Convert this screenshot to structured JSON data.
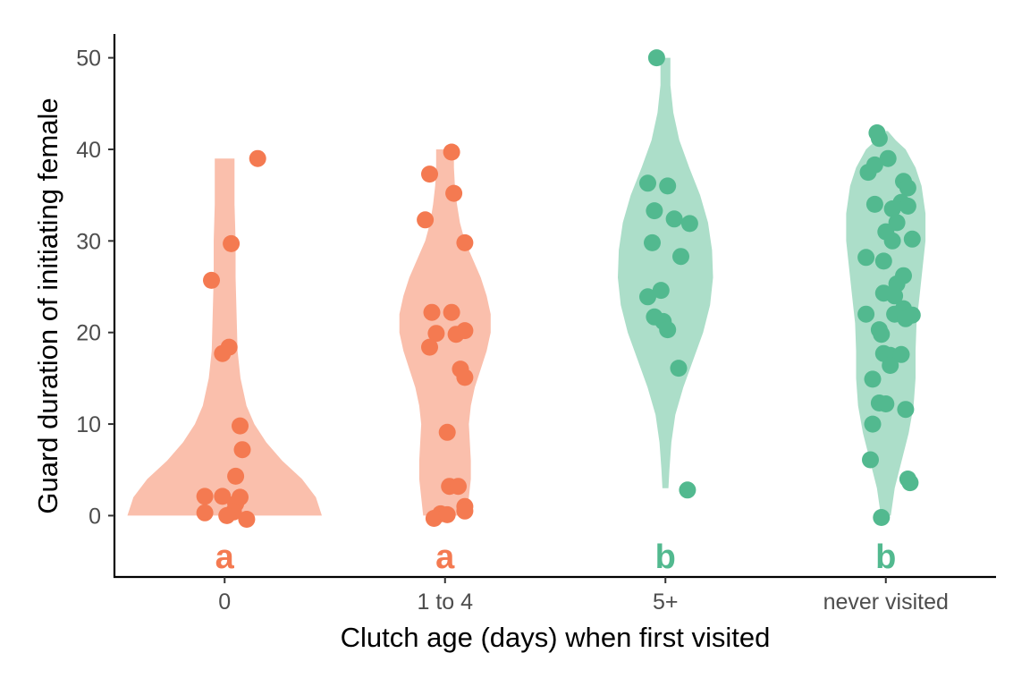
{
  "chart_data": {
    "type": "violin",
    "xlabel": "Clutch age (days) when first visited",
    "ylabel": "Guard duration of initiating female",
    "ylim": [
      -6.7,
      52.6
    ],
    "yticks": [
      0,
      10,
      20,
      30,
      40,
      50
    ],
    "grid": false,
    "legend": "none",
    "colors": {
      "orange": "#F47A51",
      "green": "#52B98F"
    },
    "groups": [
      {
        "category": "0",
        "color": "#F47A51",
        "letter": "a",
        "density": [
          [
            0,
            0.98
          ],
          [
            2,
            0.92
          ],
          [
            4,
            0.78
          ],
          [
            6,
            0.58
          ],
          [
            8,
            0.42
          ],
          [
            10,
            0.3
          ],
          [
            12,
            0.22
          ],
          [
            15,
            0.16
          ],
          [
            18,
            0.13
          ],
          [
            22,
            0.12
          ],
          [
            26,
            0.11
          ],
          [
            30,
            0.11
          ],
          [
            34,
            0.1
          ],
          [
            37,
            0.1
          ],
          [
            39,
            0.1
          ]
        ],
        "points": [
          [
            0.15,
            39
          ],
          [
            0.03,
            29.7
          ],
          [
            -0.06,
            25.7
          ],
          [
            0.02,
            18.4
          ],
          [
            -0.01,
            17.7
          ],
          [
            0.07,
            9.8
          ],
          [
            0.08,
            7.2
          ],
          [
            0.05,
            4.3
          ],
          [
            -0.09,
            2.1
          ],
          [
            -0.01,
            2.1
          ],
          [
            0.07,
            2.0
          ],
          [
            0.05,
            1.3
          ],
          [
            -0.09,
            0.3
          ],
          [
            0.04,
            0.4
          ],
          [
            0.01,
            0.0
          ],
          [
            0.1,
            -0.4
          ]
        ]
      },
      {
        "category": "1 to 4",
        "color": "#F47A51",
        "letter": "a",
        "density": [
          [
            0,
            0.22
          ],
          [
            2,
            0.24
          ],
          [
            4,
            0.26
          ],
          [
            6,
            0.26
          ],
          [
            8,
            0.25
          ],
          [
            10,
            0.24
          ],
          [
            12,
            0.26
          ],
          [
            14,
            0.3
          ],
          [
            16,
            0.36
          ],
          [
            18,
            0.42
          ],
          [
            20,
            0.46
          ],
          [
            22,
            0.46
          ],
          [
            24,
            0.42
          ],
          [
            26,
            0.36
          ],
          [
            28,
            0.28
          ],
          [
            30,
            0.2
          ],
          [
            32,
            0.15
          ],
          [
            34,
            0.12
          ],
          [
            36,
            0.1
          ],
          [
            38,
            0.09
          ],
          [
            40,
            0.09
          ]
        ],
        "points": [
          [
            0.03,
            39.7
          ],
          [
            -0.07,
            37.3
          ],
          [
            0.04,
            35.2
          ],
          [
            -0.09,
            32.3
          ],
          [
            0.09,
            29.8
          ],
          [
            -0.06,
            22.2
          ],
          [
            0.03,
            22.2
          ],
          [
            -0.04,
            19.9
          ],
          [
            0.05,
            19.8
          ],
          [
            0.09,
            20.2
          ],
          [
            -0.07,
            18.4
          ],
          [
            0.07,
            16.0
          ],
          [
            0.09,
            15.1
          ],
          [
            0.01,
            9.1
          ],
          [
            0.02,
            3.2
          ],
          [
            0.06,
            3.2
          ],
          [
            0.09,
            1.0
          ],
          [
            0.09,
            0.5
          ],
          [
            -0.02,
            0.2
          ],
          [
            -0.05,
            -0.3
          ],
          [
            0.01,
            0.1
          ]
        ]
      },
      {
        "category": "5+",
        "color": "#52B98F",
        "letter": "b",
        "density": [
          [
            3,
            0.03
          ],
          [
            5,
            0.04
          ],
          [
            8,
            0.06
          ],
          [
            11,
            0.1
          ],
          [
            14,
            0.18
          ],
          [
            17,
            0.28
          ],
          [
            20,
            0.38
          ],
          [
            23,
            0.45
          ],
          [
            26,
            0.48
          ],
          [
            29,
            0.47
          ],
          [
            32,
            0.43
          ],
          [
            35,
            0.35
          ],
          [
            38,
            0.24
          ],
          [
            41,
            0.14
          ],
          [
            44,
            0.08
          ],
          [
            47,
            0.05
          ],
          [
            50,
            0.05
          ]
        ],
        "points": [
          [
            -0.04,
            50
          ],
          [
            -0.08,
            36.3
          ],
          [
            0.01,
            36.0
          ],
          [
            -0.05,
            33.3
          ],
          [
            0.04,
            32.4
          ],
          [
            0.11,
            31.9
          ],
          [
            -0.06,
            29.8
          ],
          [
            0.07,
            28.3
          ],
          [
            -0.02,
            24.6
          ],
          [
            -0.08,
            23.9
          ],
          [
            -0.05,
            21.7
          ],
          [
            -0.01,
            21.2
          ],
          [
            0.01,
            20.3
          ],
          [
            0.06,
            16.1
          ],
          [
            0.1,
            2.8
          ]
        ]
      },
      {
        "category": "never visited",
        "color": "#52B98F",
        "letter": "b",
        "density": [
          [
            0,
            0.05
          ],
          [
            3,
            0.09
          ],
          [
            6,
            0.16
          ],
          [
            9,
            0.23
          ],
          [
            12,
            0.28
          ],
          [
            15,
            0.3
          ],
          [
            18,
            0.3
          ],
          [
            21,
            0.31
          ],
          [
            24,
            0.34
          ],
          [
            27,
            0.37
          ],
          [
            30,
            0.4
          ],
          [
            33,
            0.4
          ],
          [
            36,
            0.36
          ],
          [
            38,
            0.3
          ],
          [
            40,
            0.2
          ],
          [
            41,
            0.1
          ],
          [
            42,
            0.02
          ]
        ],
        "points": [
          [
            -0.04,
            41.8
          ],
          [
            -0.03,
            41.2
          ],
          [
            0.01,
            39.0
          ],
          [
            -0.05,
            38.3
          ],
          [
            -0.08,
            37.5
          ],
          [
            0.08,
            36.5
          ],
          [
            0.1,
            35.8
          ],
          [
            -0.05,
            34.0
          ],
          [
            0.03,
            33.5
          ],
          [
            0.07,
            34.2
          ],
          [
            0.1,
            33.8
          ],
          [
            0.05,
            32.0
          ],
          [
            0.0,
            31.0
          ],
          [
            0.03,
            30.0
          ],
          [
            0.12,
            30.2
          ],
          [
            -0.09,
            28.2
          ],
          [
            -0.01,
            27.8
          ],
          [
            0.08,
            26.2
          ],
          [
            0.05,
            25.3
          ],
          [
            -0.01,
            24.3
          ],
          [
            0.04,
            24.0
          ],
          [
            0.08,
            22.6
          ],
          [
            0.04,
            22.0
          ],
          [
            0.12,
            21.9
          ],
          [
            -0.09,
            22.0
          ],
          [
            0.09,
            21.5
          ],
          [
            -0.03,
            20.3
          ],
          [
            -0.02,
            19.8
          ],
          [
            -0.01,
            17.7
          ],
          [
            0.02,
            17.5
          ],
          [
            0.07,
            17.6
          ],
          [
            0.02,
            16.4
          ],
          [
            -0.06,
            14.9
          ],
          [
            -0.03,
            12.3
          ],
          [
            0.0,
            12.2
          ],
          [
            0.09,
            11.6
          ],
          [
            -0.06,
            10.0
          ],
          [
            -0.07,
            6.1
          ],
          [
            0.1,
            4.0
          ],
          [
            0.11,
            3.6
          ],
          [
            -0.02,
            -0.2
          ]
        ]
      }
    ]
  }
}
